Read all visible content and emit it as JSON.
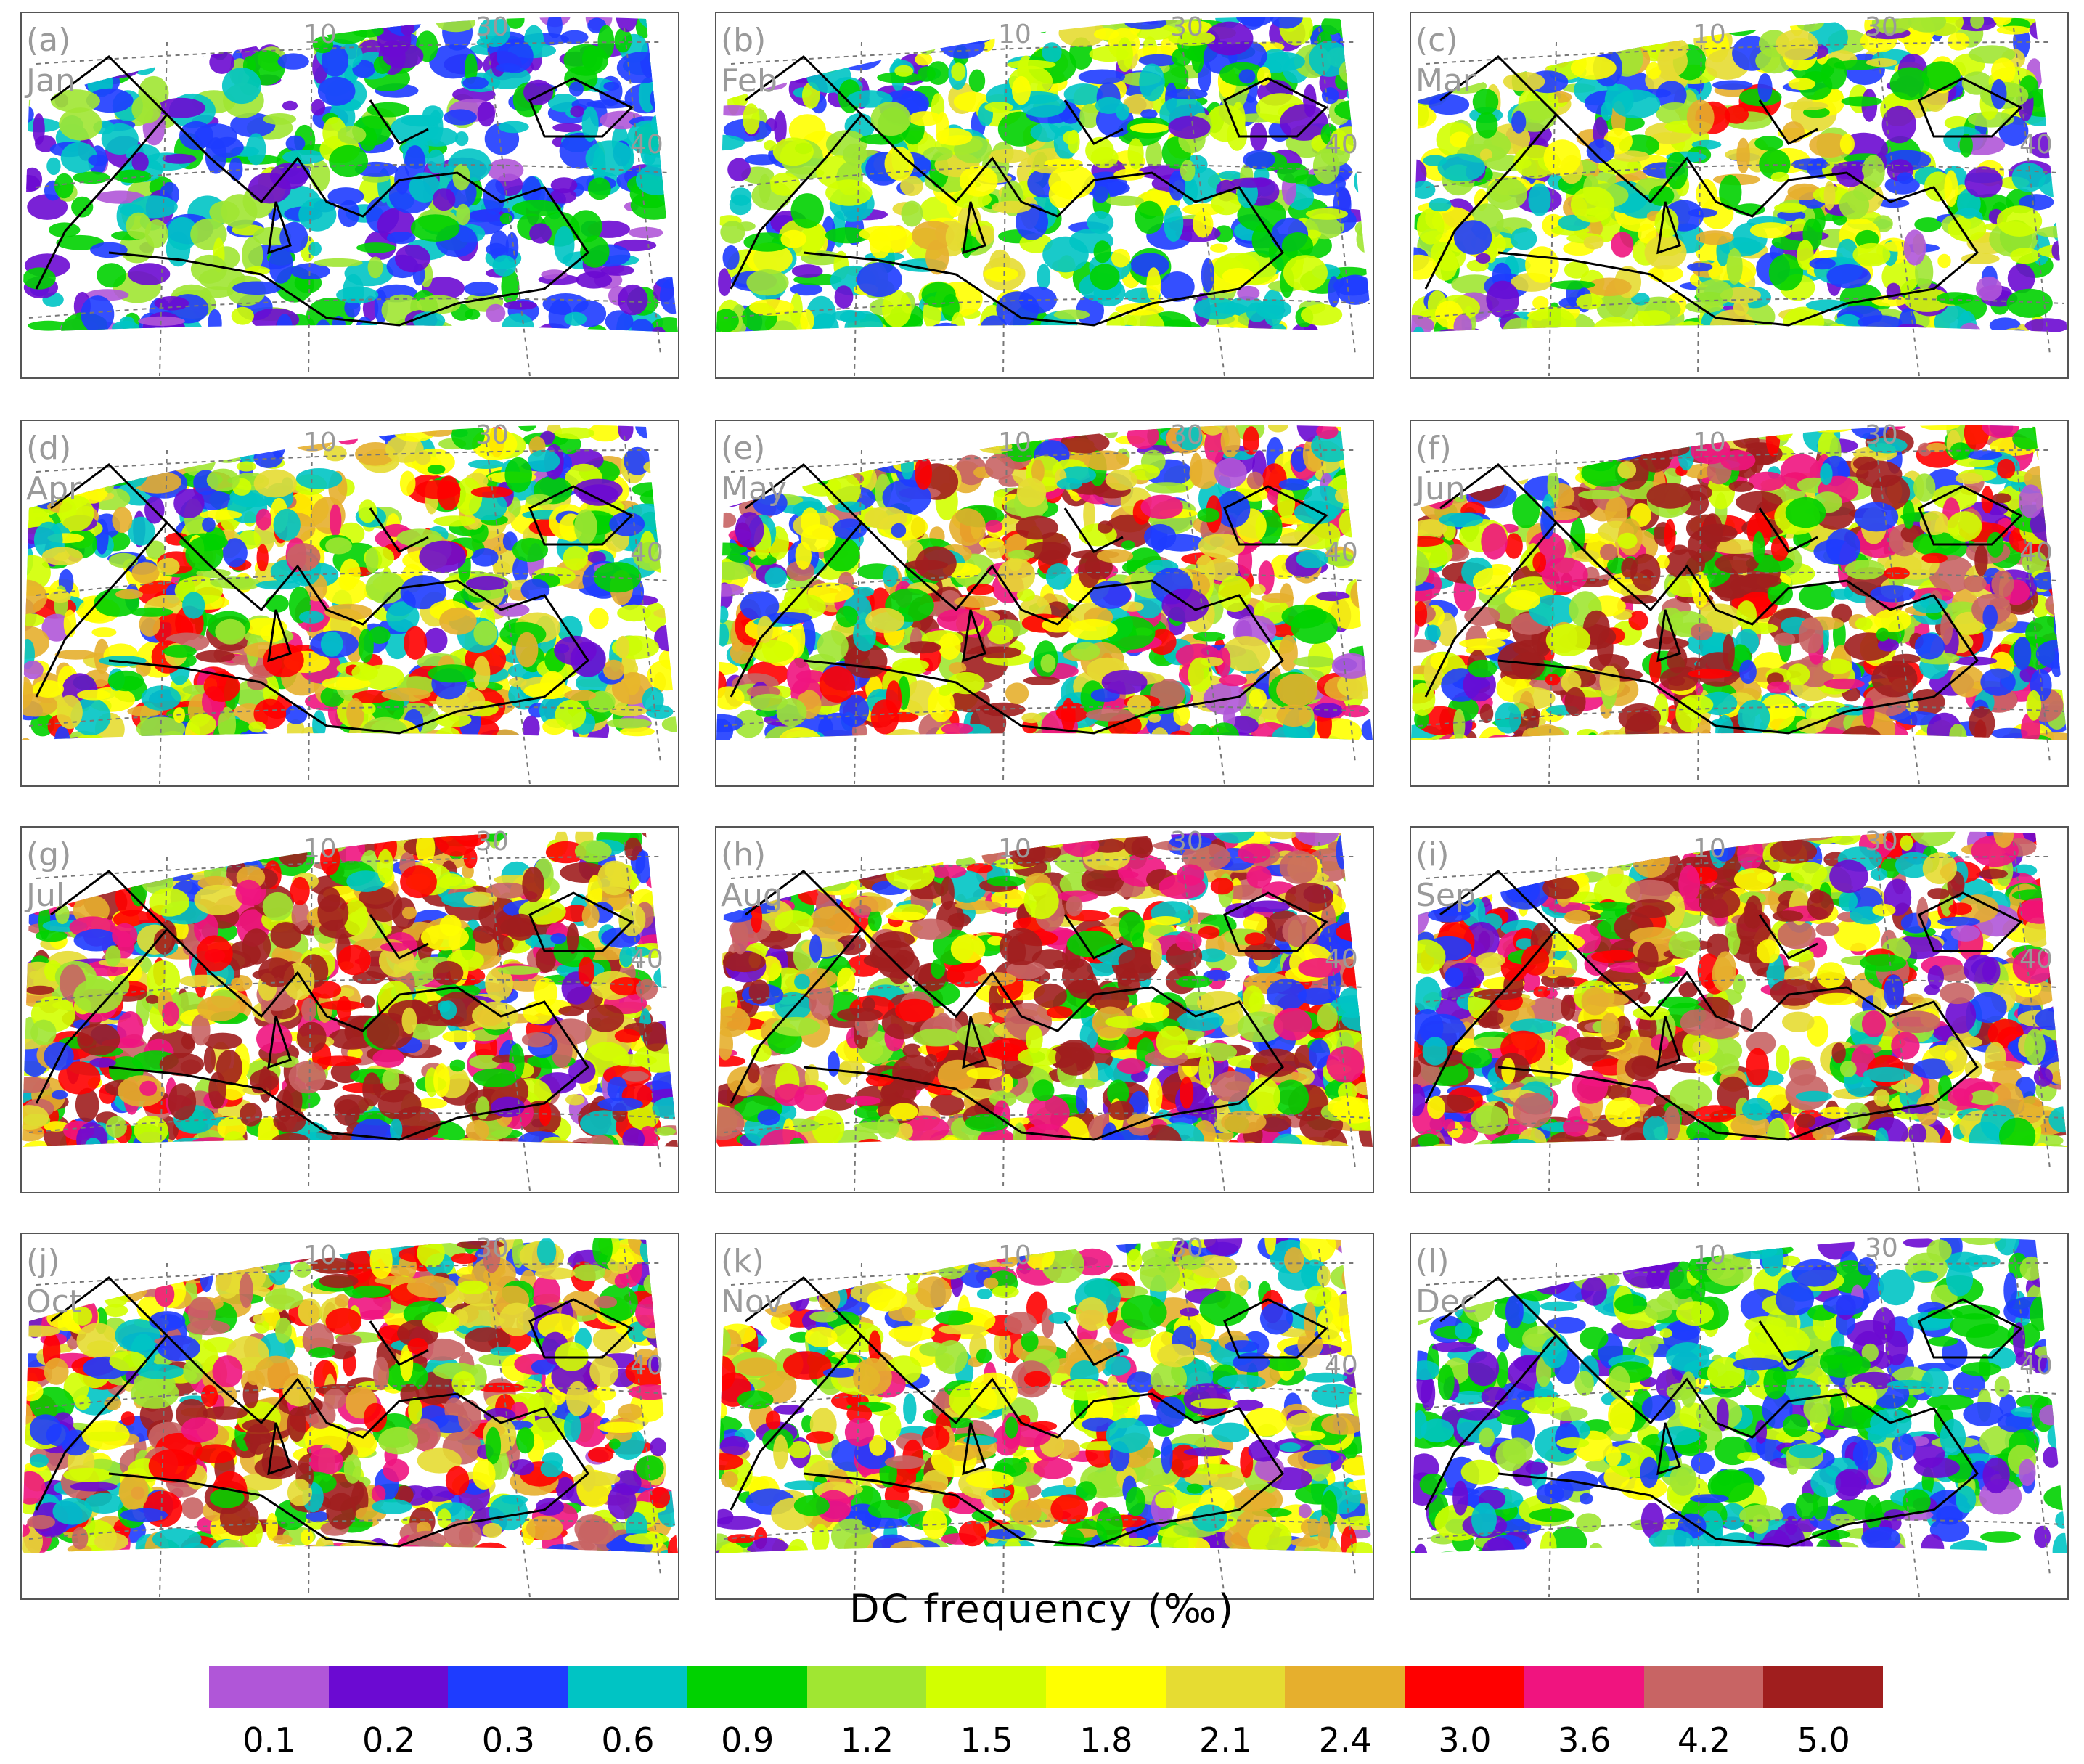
{
  "colorbar": {
    "title": "DC frequency (‰)",
    "colors": [
      "#b056d8",
      "#6b0ad2",
      "#1e3cff",
      "#00c4c4",
      "#00d200",
      "#a0e632",
      "#d2ff00",
      "#ffff00",
      "#e6dc32",
      "#e6af2d",
      "#ff0000",
      "#f0147f",
      "#c86464",
      "#a01e1e"
    ],
    "labels": [
      "0.1",
      "0.2",
      "0.3",
      "0.6",
      "0.9",
      "1.2",
      "1.5",
      "1.8",
      "2.1",
      "2.4",
      "3.0",
      "3.6",
      "4.2",
      "5.0"
    ]
  },
  "grid_labels": {
    "lon_a": "10",
    "lon_b": "30",
    "lat": "40"
  },
  "panels": [
    {
      "label": "(a)",
      "month": "Jan",
      "level": 0.3
    },
    {
      "label": "(b)",
      "month": "Feb",
      "level": 0.42
    },
    {
      "label": "(c)",
      "month": "Mar",
      "level": 0.48
    },
    {
      "label": "(d)",
      "month": "Apr",
      "level": 0.58
    },
    {
      "label": "(e)",
      "month": "May",
      "level": 0.7
    },
    {
      "label": "(f)",
      "month": "Jun",
      "level": 0.8
    },
    {
      "label": "(g)",
      "month": "Jul",
      "level": 0.82
    },
    {
      "label": "(h)",
      "month": "Aug",
      "level": 0.84
    },
    {
      "label": "(i)",
      "month": "Sep",
      "level": 0.8
    },
    {
      "label": "(j)",
      "month": "Oct",
      "level": 0.74
    },
    {
      "label": "(k)",
      "month": "Nov",
      "level": 0.6
    },
    {
      "label": "(l)",
      "month": "Dec",
      "level": 0.34
    }
  ]
}
